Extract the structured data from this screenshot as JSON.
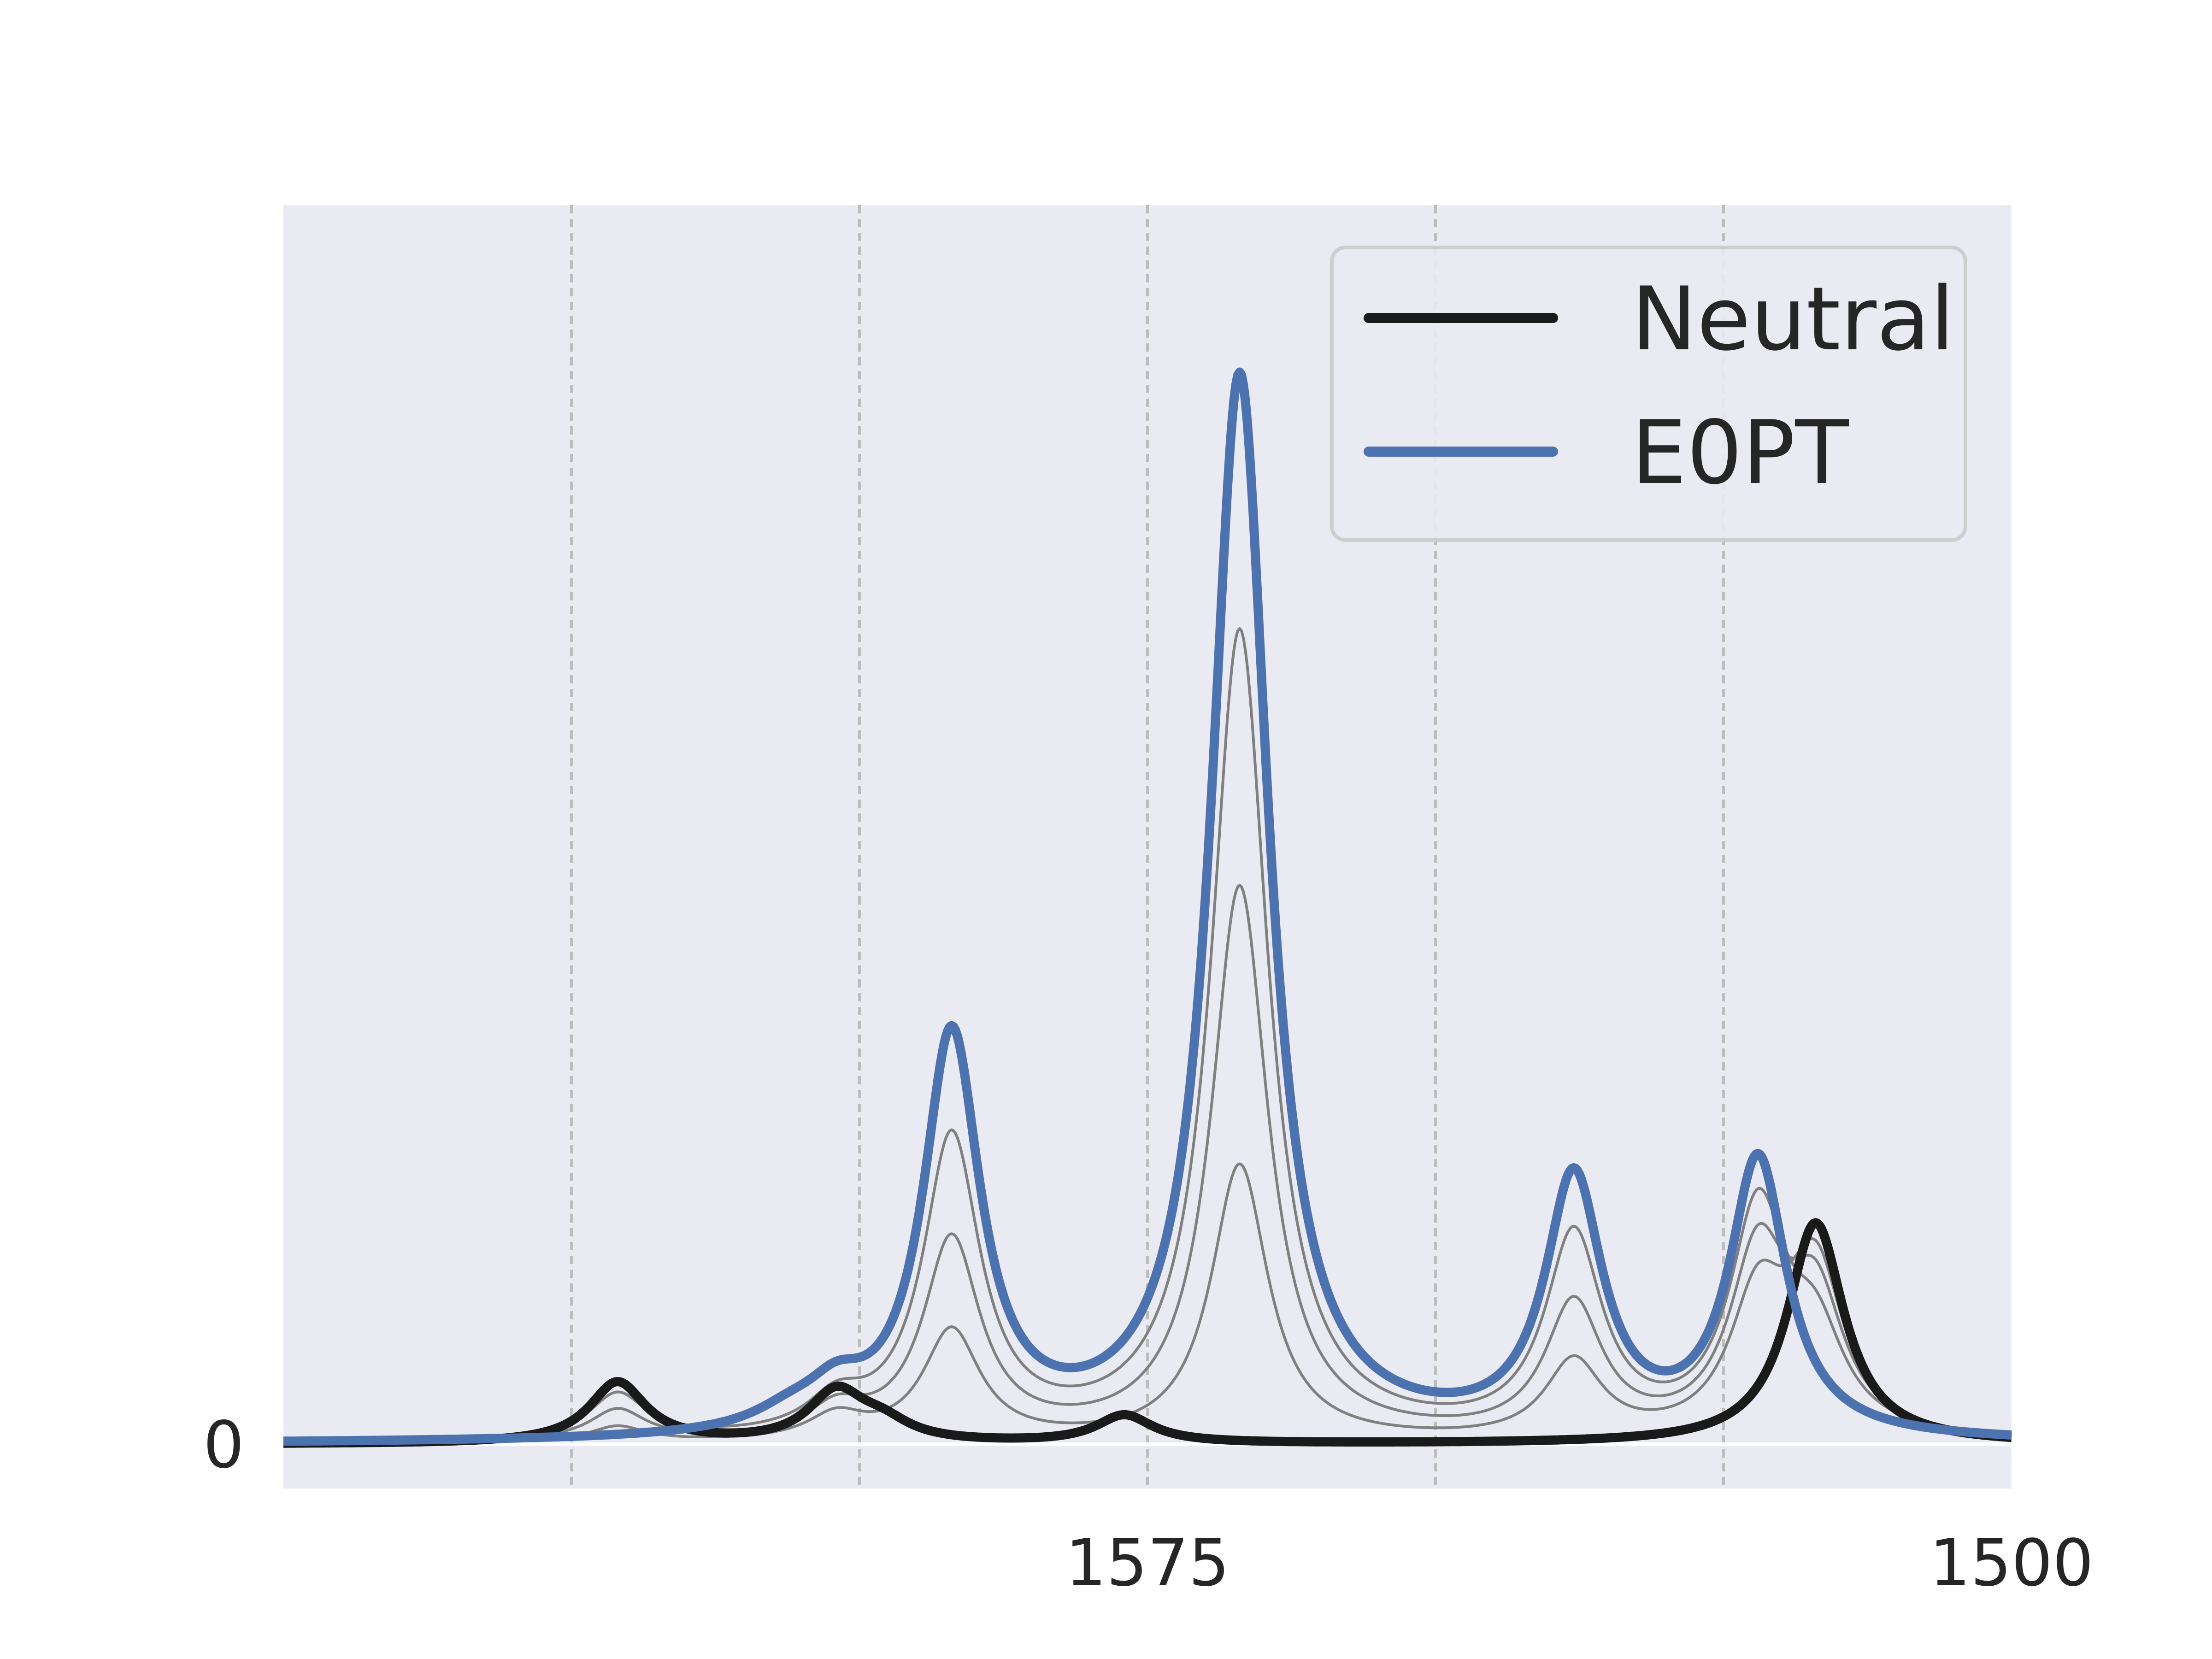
{
  "chart_data": {
    "type": "line",
    "title": "",
    "xlabel": "",
    "ylabel": "",
    "x_axis": {
      "range": [
        1650,
        1500
      ],
      "reversed": true,
      "tick_values": [
        1575,
        1500
      ],
      "tick_labels": [
        "1575",
        "1500"
      ],
      "vertical_gridlines": [
        1625,
        1600,
        1575,
        1550,
        1525
      ]
    },
    "y_axis": {
      "range": [
        -0.04,
        1.12
      ],
      "tick_values": [
        0
      ],
      "tick_labels": [
        "0"
      ]
    },
    "grid": "vertical dashed",
    "background": "#e9eaf2",
    "legend": {
      "position": "top-right",
      "entries": [
        "Neutral",
        "E0PT"
      ]
    },
    "colors": {
      "neutral": "#1a1a1a",
      "e0pt": "#4c72b0",
      "intermediate": "#808080"
    },
    "series": [
      {
        "name": "Neutral",
        "color": "#1a1a1a",
        "role": "endpoint",
        "peaks": [
          {
            "center": 1621,
            "height": 0.055,
            "width": 3.0
          },
          {
            "center": 1602,
            "height": 0.045,
            "width": 3.0
          },
          {
            "center": 1598,
            "height": 0.015,
            "width": 3.0
          },
          {
            "center": 1577,
            "height": 0.025,
            "width": 3.0
          },
          {
            "center": 1517,
            "height": 0.2,
            "width": 3.0
          }
        ]
      },
      {
        "name": "",
        "color": "#808080",
        "role": "intermediate",
        "peaks": [
          {
            "center": 1621,
            "height": 0.014,
            "width": 3.0
          },
          {
            "center": 1602,
            "height": 0.022,
            "width": 3.0
          },
          {
            "center": 1592,
            "height": 0.1,
            "width": 3.0
          },
          {
            "center": 1567,
            "height": 0.25,
            "width": 3.0
          },
          {
            "center": 1538,
            "height": 0.07,
            "width": 3.0
          },
          {
            "center": 1522,
            "height": 0.12,
            "width": 3.0
          },
          {
            "center": 1517,
            "height": 0.15,
            "width": 3.0
          }
        ]
      },
      {
        "name": "",
        "color": "#808080",
        "role": "intermediate",
        "peaks": [
          {
            "center": 1621,
            "height": 0.028,
            "width": 3.0
          },
          {
            "center": 1602,
            "height": 0.025,
            "width": 3.0
          },
          {
            "center": 1592,
            "height": 0.18,
            "width": 3.0
          },
          {
            "center": 1567,
            "height": 0.5,
            "width": 3.0
          },
          {
            "center": 1538,
            "height": 0.12,
            "width": 3.0
          },
          {
            "center": 1522,
            "height": 0.16,
            "width": 3.0
          },
          {
            "center": 1517,
            "height": 0.12,
            "width": 3.0
          }
        ]
      },
      {
        "name": "",
        "color": "#808080",
        "role": "intermediate",
        "peaks": [
          {
            "center": 1621,
            "height": 0.041,
            "width": 3.0
          },
          {
            "center": 1602,
            "height": 0.028,
            "width": 3.0
          },
          {
            "center": 1592,
            "height": 0.27,
            "width": 3.0
          },
          {
            "center": 1567,
            "height": 0.73,
            "width": 3.0
          },
          {
            "center": 1538,
            "height": 0.18,
            "width": 3.0
          },
          {
            "center": 1522,
            "height": 0.2,
            "width": 3.0
          },
          {
            "center": 1517,
            "height": 0.08,
            "width": 3.0
          }
        ]
      },
      {
        "name": "E0PT",
        "color": "#4c72b0",
        "role": "endpoint",
        "peaks": [
          {
            "center": 1606,
            "height": 0.015,
            "width": 4.0
          },
          {
            "center": 1602,
            "height": 0.03,
            "width": 3.0
          },
          {
            "center": 1592,
            "height": 0.36,
            "width": 3.0
          },
          {
            "center": 1567,
            "height": 0.96,
            "width": 3.0
          },
          {
            "center": 1538,
            "height": 0.23,
            "width": 3.0
          },
          {
            "center": 1522,
            "height": 0.25,
            "width": 3.0
          }
        ]
      }
    ]
  }
}
